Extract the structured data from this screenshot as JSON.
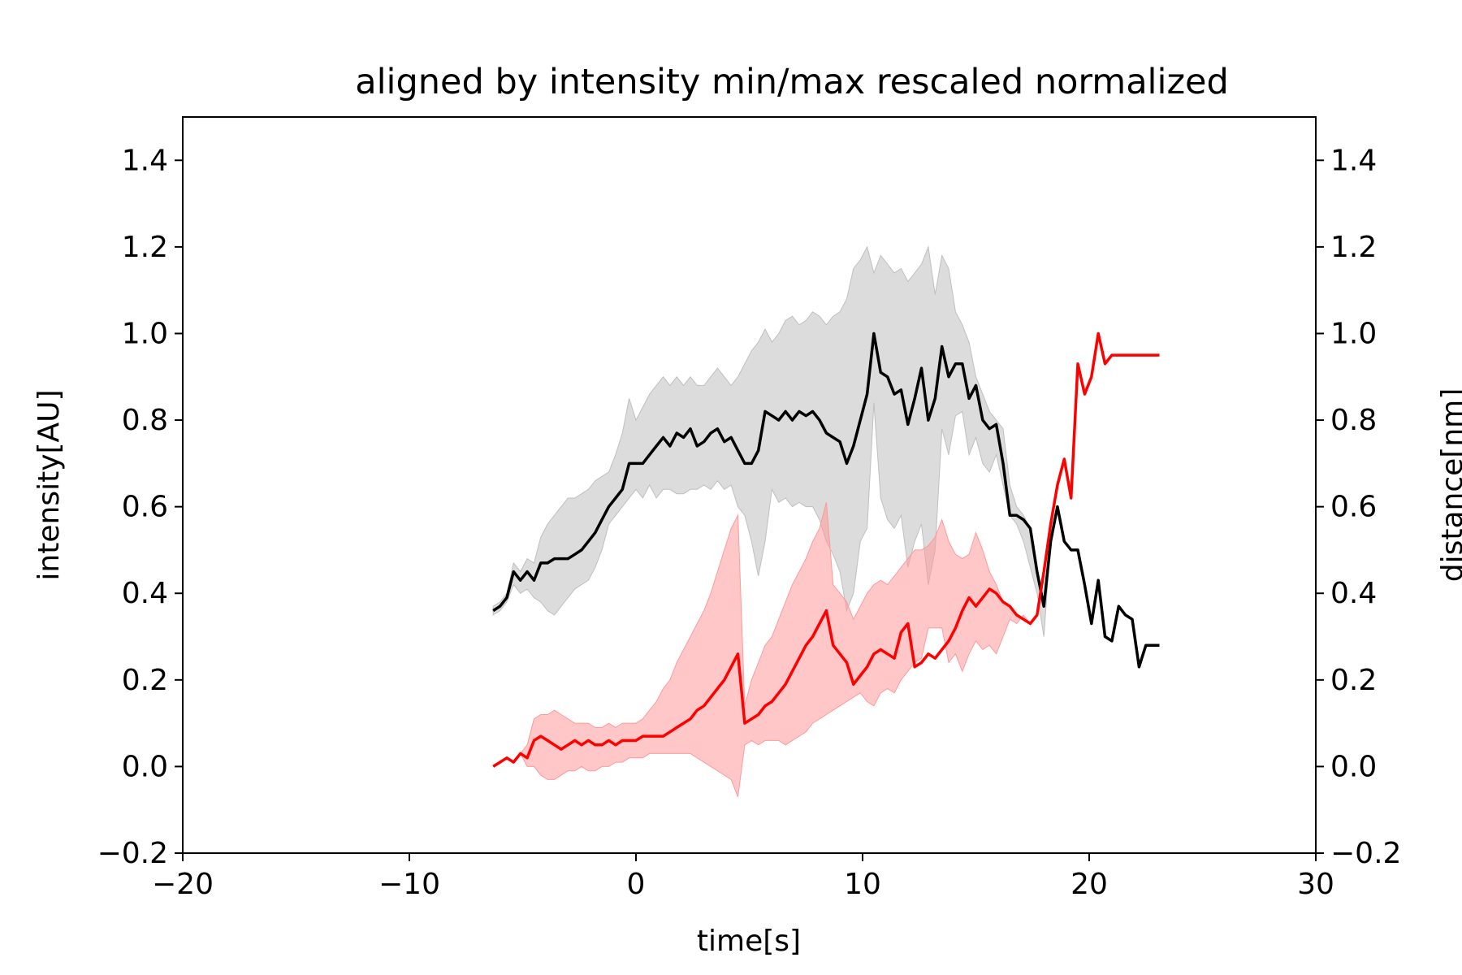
{
  "chart_data": {
    "type": "line",
    "title": "aligned by intensity min/max rescaled normalized",
    "xlabel": "time[s]",
    "ylabel_left": "intensity[AU]",
    "ylabel_right": "distance[nm]",
    "xlim": [
      -20,
      30
    ],
    "ylim": [
      -0.2,
      1.5
    ],
    "x_ticks": [
      "−20",
      "−10",
      "0",
      "10",
      "20",
      "30"
    ],
    "x_tick_values": [
      -20,
      -10,
      0,
      10,
      20,
      30
    ],
    "y_ticks": [
      "−0.2",
      "0.0",
      "0.2",
      "0.4",
      "0.6",
      "0.8",
      "1.0",
      "1.2",
      "1.4"
    ],
    "y_tick_values": [
      -0.2,
      0.0,
      0.2,
      0.4,
      0.6,
      0.8,
      1.0,
      1.2,
      1.4
    ],
    "grid": false,
    "series": [
      {
        "color": "#000000",
        "band_color": "#bfbfbf",
        "x": [
          -6.3,
          -6.0,
          -5.7,
          -5.4,
          -5.1,
          -4.8,
          -4.5,
          -4.2,
          -3.9,
          -3.6,
          -3.3,
          -3.0,
          -2.7,
          -2.4,
          -2.1,
          -1.8,
          -1.5,
          -1.2,
          -0.9,
          -0.6,
          -0.3,
          0.0,
          0.3,
          0.6,
          0.9,
          1.2,
          1.5,
          1.8,
          2.1,
          2.4,
          2.7,
          3.0,
          3.3,
          3.6,
          3.9,
          4.2,
          4.5,
          4.8,
          5.1,
          5.4,
          5.7,
          6.0,
          6.3,
          6.6,
          6.9,
          7.2,
          7.5,
          7.8,
          8.1,
          8.4,
          8.7,
          9.0,
          9.3,
          9.6,
          9.9,
          10.2,
          10.5,
          10.8,
          11.1,
          11.4,
          11.7,
          12.0,
          12.3,
          12.6,
          12.9,
          13.2,
          13.5,
          13.8,
          14.1,
          14.4,
          14.7,
          15.0,
          15.3,
          15.6,
          15.9,
          16.2,
          16.5,
          16.8,
          17.1,
          17.4,
          17.7,
          18.0,
          18.3,
          18.6,
          18.9,
          19.2,
          19.5,
          19.8,
          20.1,
          20.4,
          20.7,
          21.0,
          21.3,
          21.6,
          21.9,
          22.2,
          22.5,
          22.8,
          23.1
        ],
        "y": [
          0.36,
          0.37,
          0.39,
          0.45,
          0.43,
          0.45,
          0.43,
          0.47,
          0.47,
          0.48,
          0.48,
          0.48,
          0.49,
          0.5,
          0.52,
          0.54,
          0.57,
          0.6,
          0.62,
          0.64,
          0.7,
          0.7,
          0.7,
          0.72,
          0.74,
          0.76,
          0.74,
          0.77,
          0.76,
          0.78,
          0.74,
          0.75,
          0.77,
          0.78,
          0.75,
          0.76,
          0.73,
          0.7,
          0.7,
          0.73,
          0.82,
          0.81,
          0.8,
          0.82,
          0.8,
          0.82,
          0.81,
          0.82,
          0.8,
          0.77,
          0.76,
          0.75,
          0.7,
          0.74,
          0.8,
          0.86,
          1.0,
          0.91,
          0.9,
          0.86,
          0.87,
          0.79,
          0.85,
          0.92,
          0.8,
          0.85,
          0.97,
          0.9,
          0.93,
          0.93,
          0.85,
          0.88,
          0.8,
          0.78,
          0.79,
          0.7,
          0.58,
          0.58,
          0.57,
          0.55,
          0.45,
          0.37,
          0.52,
          0.6,
          0.52,
          0.5,
          0.5,
          0.42,
          0.33,
          0.43,
          0.3,
          0.29,
          0.37,
          0.35,
          0.34,
          0.23,
          0.28,
          0.28,
          0.28
        ],
        "y_lower": [
          0.35,
          0.36,
          0.38,
          0.42,
          0.4,
          0.41,
          0.39,
          0.38,
          0.36,
          0.35,
          0.37,
          0.39,
          0.41,
          0.42,
          0.43,
          0.46,
          0.5,
          0.56,
          0.58,
          0.6,
          0.62,
          0.64,
          0.62,
          0.65,
          0.62,
          0.64,
          0.64,
          0.63,
          0.63,
          0.64,
          0.64,
          0.65,
          0.64,
          0.66,
          0.64,
          0.65,
          0.6,
          0.58,
          0.52,
          0.44,
          0.52,
          0.64,
          0.61,
          0.62,
          0.6,
          0.61,
          0.6,
          0.6,
          0.57,
          0.52,
          0.49,
          0.45,
          0.36,
          0.4,
          0.52,
          0.55,
          0.84,
          0.62,
          0.57,
          0.55,
          0.58,
          0.46,
          0.52,
          0.56,
          0.42,
          0.5,
          0.78,
          0.72,
          0.81,
          0.82,
          0.72,
          0.76,
          0.7,
          0.68,
          0.72,
          0.65,
          0.58,
          0.56,
          0.52,
          0.46,
          0.4,
          0.3,
          0.52,
          0.6,
          0.52,
          0.5,
          0.5,
          0.42,
          0.33,
          0.43,
          0.3,
          0.29,
          0.37,
          0.35,
          0.34,
          0.23,
          0.28,
          0.28,
          0.28
        ],
        "y_upper": [
          0.37,
          0.38,
          0.4,
          0.47,
          0.45,
          0.48,
          0.47,
          0.53,
          0.56,
          0.58,
          0.6,
          0.62,
          0.62,
          0.63,
          0.64,
          0.66,
          0.67,
          0.68,
          0.72,
          0.77,
          0.85,
          0.8,
          0.83,
          0.86,
          0.88,
          0.9,
          0.88,
          0.9,
          0.88,
          0.9,
          0.88,
          0.88,
          0.9,
          0.92,
          0.9,
          0.88,
          0.9,
          0.93,
          0.96,
          0.98,
          1.01,
          0.98,
          1.0,
          1.03,
          1.04,
          1.02,
          1.03,
          1.05,
          1.04,
          1.02,
          1.04,
          1.05,
          1.08,
          1.15,
          1.17,
          1.2,
          1.14,
          1.18,
          1.16,
          1.14,
          1.15,
          1.12,
          1.14,
          1.16,
          1.2,
          1.09,
          1.18,
          1.15,
          1.05,
          1.02,
          0.98,
          0.9,
          0.86,
          0.82,
          0.8,
          0.78,
          0.65,
          0.6,
          0.58,
          0.55,
          0.45,
          0.37,
          0.52,
          0.6,
          0.52,
          0.5,
          0.5,
          0.42,
          0.33,
          0.43,
          0.3,
          0.29,
          0.37,
          0.35,
          0.34,
          0.23,
          0.28,
          0.28,
          0.28
        ]
      },
      {
        "color": "#ff0000",
        "band_color": "#ff9999",
        "x": [
          -6.3,
          -6.0,
          -5.7,
          -5.4,
          -5.1,
          -4.8,
          -4.5,
          -4.2,
          -3.9,
          -3.6,
          -3.3,
          -3.0,
          -2.7,
          -2.4,
          -2.1,
          -1.8,
          -1.5,
          -1.2,
          -0.9,
          -0.6,
          -0.3,
          0.0,
          0.3,
          0.6,
          0.9,
          1.2,
          1.5,
          1.8,
          2.1,
          2.4,
          2.7,
          3.0,
          3.3,
          3.6,
          3.9,
          4.2,
          4.5,
          4.8,
          5.1,
          5.4,
          5.7,
          6.0,
          6.3,
          6.6,
          6.9,
          7.2,
          7.5,
          7.8,
          8.1,
          8.4,
          8.7,
          9.0,
          9.3,
          9.6,
          9.9,
          10.2,
          10.5,
          10.8,
          11.1,
          11.4,
          11.7,
          12.0,
          12.3,
          12.6,
          12.9,
          13.2,
          13.5,
          13.8,
          14.1,
          14.4,
          14.7,
          15.0,
          15.3,
          15.6,
          15.9,
          16.2,
          16.5,
          16.8,
          17.1,
          17.4,
          17.7,
          18.0,
          18.3,
          18.6,
          18.9,
          19.2,
          19.5,
          19.8,
          20.1,
          20.4,
          20.7,
          21.0,
          21.3,
          21.6,
          21.9,
          22.2,
          22.5,
          22.8,
          23.1
        ],
        "y": [
          0.0,
          0.01,
          0.02,
          0.01,
          0.03,
          0.02,
          0.06,
          0.07,
          0.06,
          0.05,
          0.04,
          0.05,
          0.06,
          0.05,
          0.06,
          0.05,
          0.05,
          0.06,
          0.05,
          0.06,
          0.06,
          0.06,
          0.07,
          0.07,
          0.07,
          0.07,
          0.08,
          0.09,
          0.1,
          0.11,
          0.13,
          0.14,
          0.16,
          0.18,
          0.2,
          0.23,
          0.26,
          0.1,
          0.11,
          0.12,
          0.14,
          0.15,
          0.17,
          0.19,
          0.22,
          0.25,
          0.28,
          0.3,
          0.33,
          0.36,
          0.28,
          0.26,
          0.24,
          0.19,
          0.21,
          0.23,
          0.26,
          0.27,
          0.26,
          0.25,
          0.31,
          0.33,
          0.23,
          0.24,
          0.26,
          0.25,
          0.27,
          0.29,
          0.32,
          0.36,
          0.39,
          0.37,
          0.39,
          0.41,
          0.4,
          0.38,
          0.37,
          0.35,
          0.34,
          0.33,
          0.35,
          0.45,
          0.56,
          0.65,
          0.71,
          0.62,
          0.93,
          0.86,
          0.9,
          1.0,
          0.93,
          0.95,
          0.95,
          0.95,
          0.95,
          0.95,
          0.95,
          0.95,
          0.95
        ],
        "y_lower": [
          0.0,
          0.01,
          0.02,
          0.01,
          0.03,
          0.0,
          0.0,
          -0.02,
          -0.03,
          -0.03,
          -0.02,
          -0.01,
          -0.01,
          0.0,
          -0.01,
          -0.01,
          0.0,
          0.0,
          0.01,
          0.01,
          0.02,
          0.02,
          0.02,
          0.03,
          0.03,
          0.03,
          0.03,
          0.03,
          0.03,
          0.03,
          0.02,
          0.01,
          0.0,
          -0.01,
          -0.02,
          -0.03,
          -0.07,
          0.05,
          0.06,
          0.05,
          0.06,
          0.06,
          0.06,
          0.05,
          0.06,
          0.07,
          0.08,
          0.1,
          0.11,
          0.12,
          0.13,
          0.14,
          0.15,
          0.16,
          0.17,
          0.15,
          0.14,
          0.17,
          0.18,
          0.17,
          0.2,
          0.22,
          0.24,
          0.25,
          0.32,
          0.32,
          0.32,
          0.24,
          0.26,
          0.22,
          0.26,
          0.29,
          0.27,
          0.28,
          0.26,
          0.3,
          0.34,
          0.33,
          0.35,
          0.33,
          0.35,
          0.45,
          0.56,
          0.65,
          0.71,
          0.62,
          0.93,
          0.86,
          0.9,
          1.0,
          0.93,
          0.95,
          0.95,
          0.95,
          0.95,
          0.95,
          0.95,
          0.95,
          0.95
        ],
        "y_upper": [
          0.0,
          0.01,
          0.02,
          0.01,
          0.03,
          0.05,
          0.11,
          0.12,
          0.12,
          0.13,
          0.12,
          0.11,
          0.1,
          0.1,
          0.1,
          0.09,
          0.09,
          0.1,
          0.09,
          0.1,
          0.1,
          0.1,
          0.11,
          0.13,
          0.15,
          0.18,
          0.2,
          0.24,
          0.27,
          0.3,
          0.33,
          0.36,
          0.4,
          0.45,
          0.5,
          0.55,
          0.58,
          0.14,
          0.2,
          0.24,
          0.28,
          0.3,
          0.34,
          0.38,
          0.42,
          0.45,
          0.48,
          0.52,
          0.55,
          0.61,
          0.42,
          0.4,
          0.38,
          0.34,
          0.37,
          0.4,
          0.42,
          0.43,
          0.42,
          0.44,
          0.46,
          0.48,
          0.5,
          0.5,
          0.51,
          0.53,
          0.57,
          0.52,
          0.49,
          0.48,
          0.49,
          0.54,
          0.5,
          0.45,
          0.42,
          0.38,
          0.37,
          0.35,
          0.34,
          0.33,
          0.35,
          0.45,
          0.56,
          0.65,
          0.71,
          0.62,
          0.93,
          0.86,
          0.9,
          1.0,
          0.93,
          0.95,
          0.95,
          0.95,
          0.95,
          0.95,
          0.95,
          0.95,
          0.95
        ]
      }
    ]
  }
}
